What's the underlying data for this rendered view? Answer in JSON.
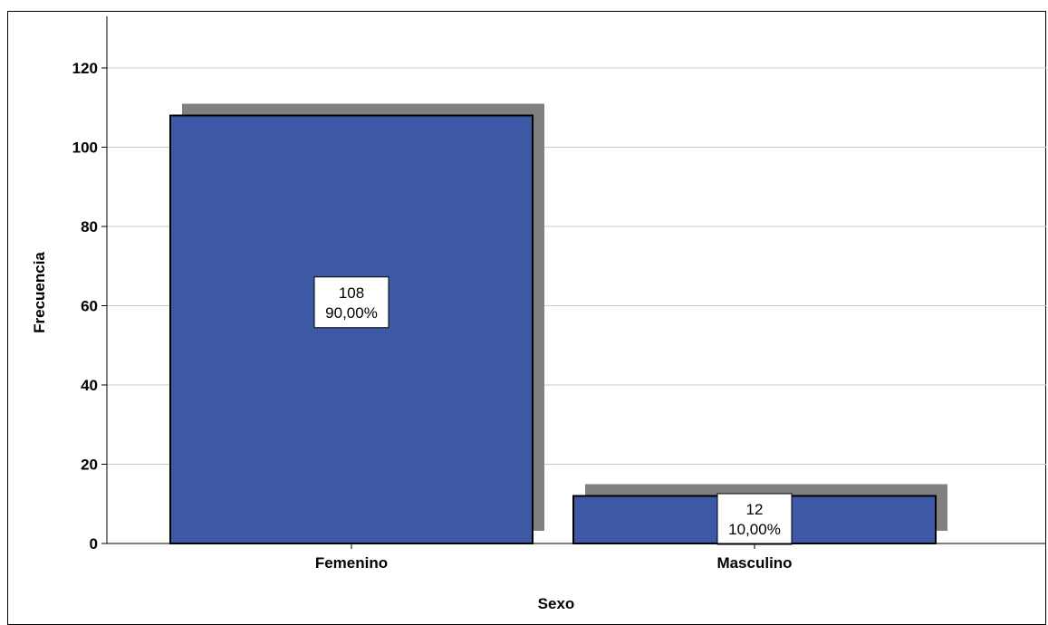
{
  "chart_data": {
    "type": "bar",
    "categories": [
      "Femenino",
      "Masculino"
    ],
    "values": [
      108,
      12
    ],
    "percent_labels": [
      "90,00%",
      "10,00%"
    ],
    "count_labels": [
      "108",
      "12"
    ],
    "xlabel": "Sexo",
    "ylabel": "Frecuencia",
    "ylim": [
      0,
      130
    ],
    "yticks": [
      "0",
      "20",
      "40",
      "60",
      "80",
      "100",
      "120"
    ],
    "grid": true,
    "bar_shadow": true,
    "colors": {
      "bar": "#3d59a6",
      "shadow": "#808080",
      "grid": "#c8c8c8",
      "outline": "#000000"
    }
  }
}
